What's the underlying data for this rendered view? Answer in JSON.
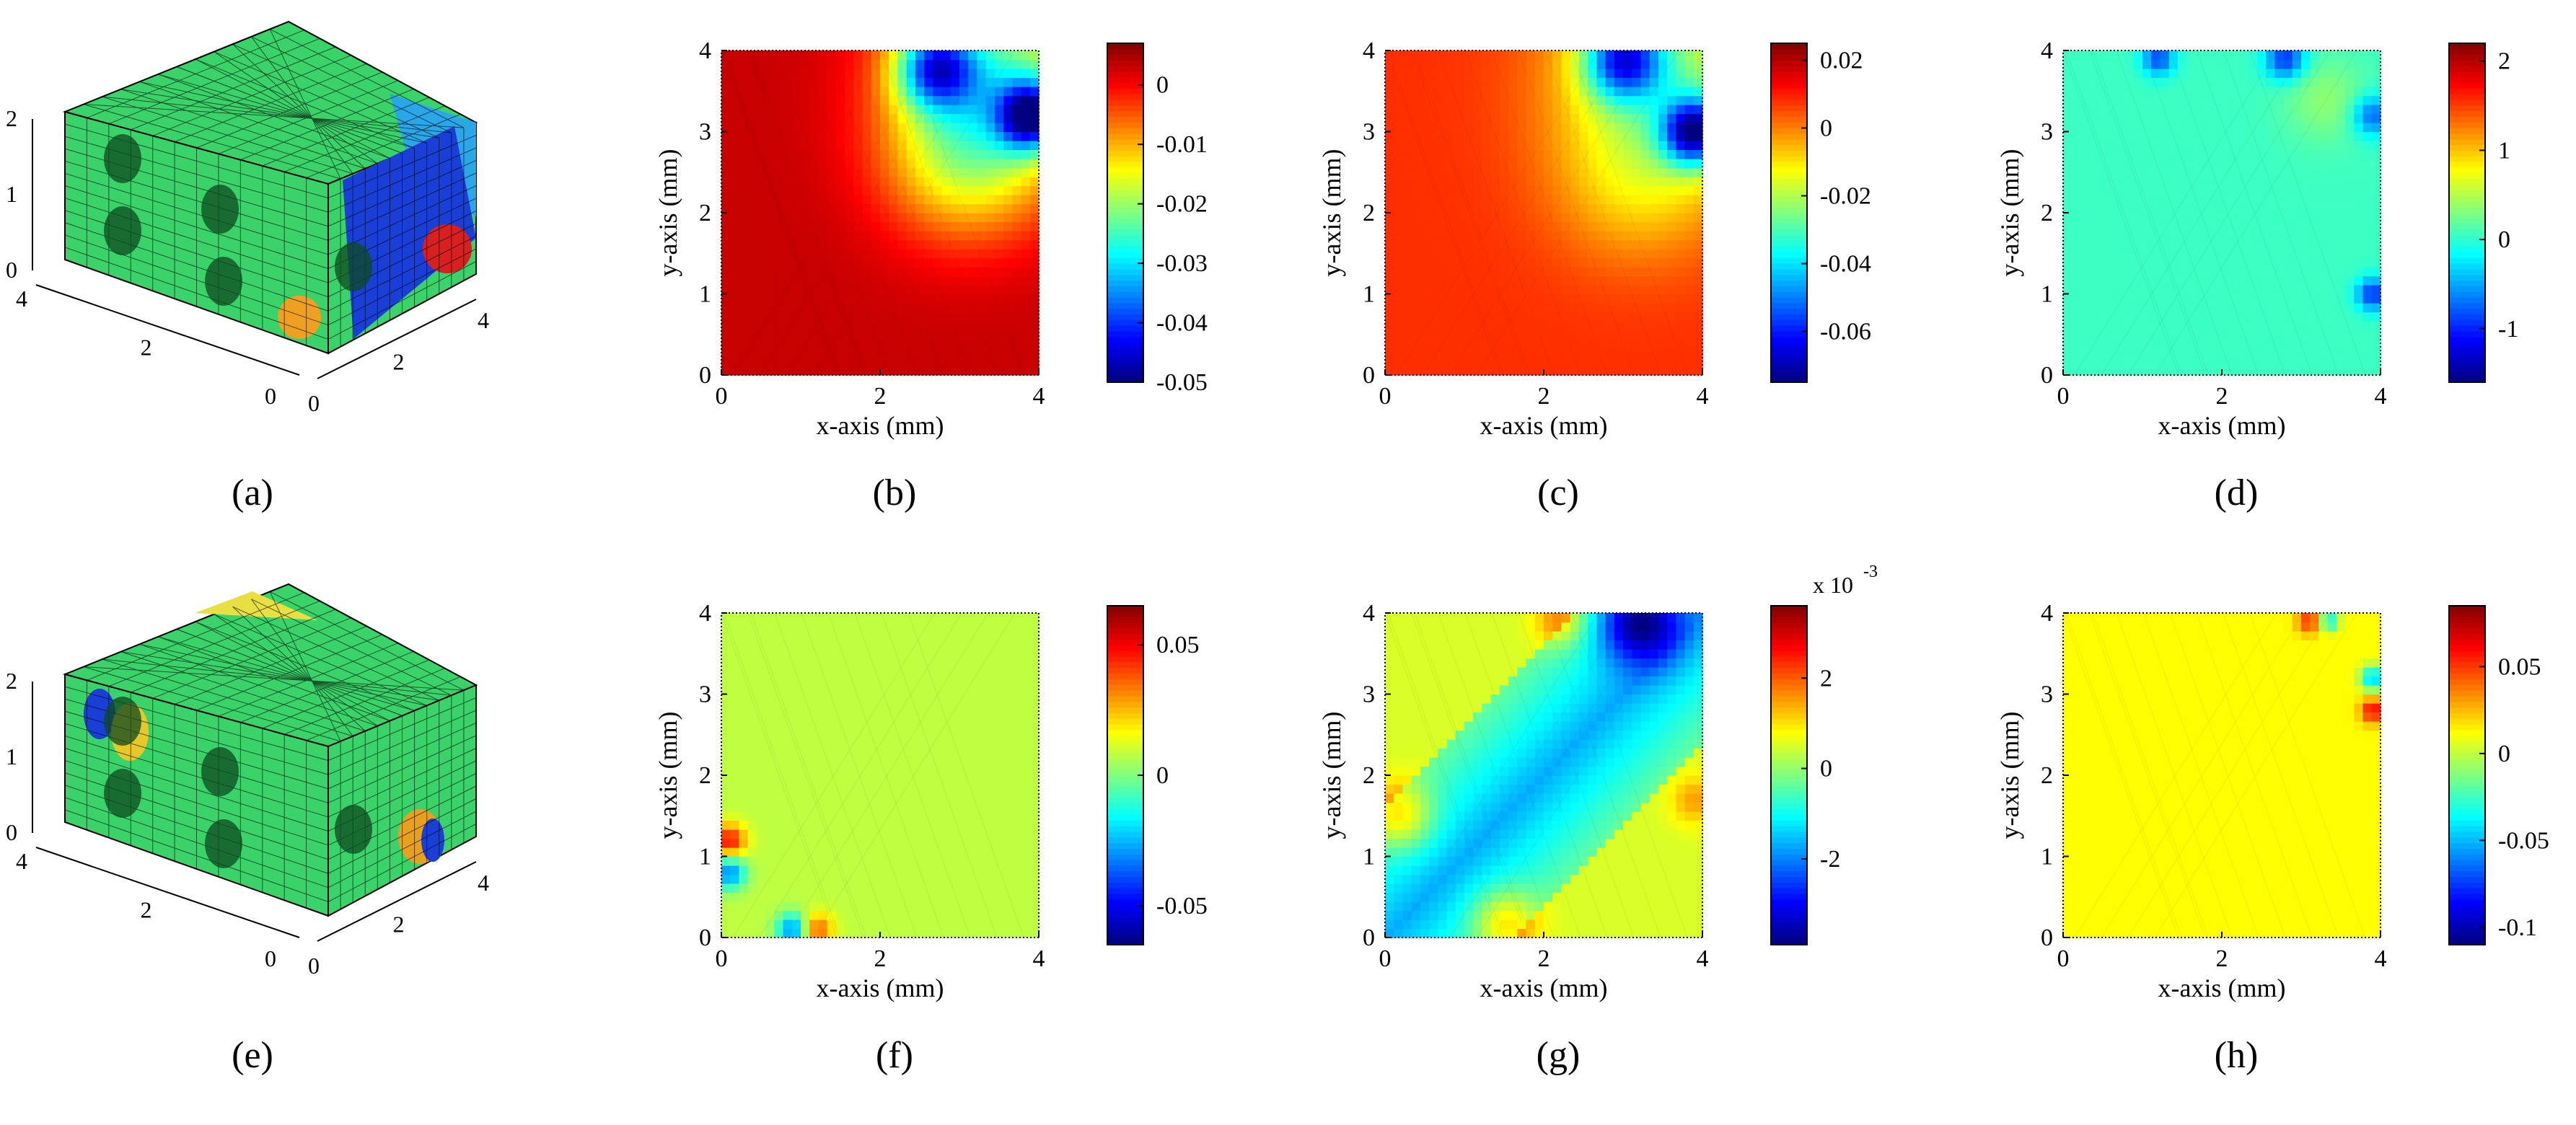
{
  "chart_data": [
    {
      "panel": "a",
      "type": "mesh3d",
      "caption": "(a)",
      "axes": {
        "z_ticks": [
          "0",
          "1",
          "2"
        ],
        "y_ticks": [
          "0",
          "2",
          "4"
        ],
        "x_ticks": [
          "0",
          "2",
          "4"
        ]
      },
      "colors": {
        "base": "#39d36a",
        "mesh": "#000000"
      }
    },
    {
      "panel": "b",
      "type": "heatmap",
      "caption": "(b)",
      "xlabel": "x-axis (mm)",
      "ylabel": "y-axis (mm)",
      "xlim": [
        0,
        4
      ],
      "ylim": [
        0,
        4
      ],
      "x_ticks": [
        "0",
        "2",
        "4"
      ],
      "y_ticks": [
        "0",
        "1",
        "2",
        "3",
        "4"
      ],
      "colorbar": {
        "min": -0.05,
        "max": 0.007,
        "ticks": [
          0,
          -0.01,
          -0.02,
          -0.03,
          -0.04,
          -0.05
        ],
        "tick_labels": [
          "0",
          "-0.01",
          "-0.02",
          "-0.03",
          "-0.04",
          "-0.05"
        ],
        "exponent": ""
      },
      "field": {
        "base": 0.003,
        "spots": [
          {
            "x": 3.5,
            "y": 3.6,
            "r": 1.3,
            "v": -0.025
          },
          {
            "x": 2.7,
            "y": 3.8,
            "r": 0.5,
            "v": -0.03
          },
          {
            "x": 3.9,
            "y": 3.2,
            "r": 0.4,
            "v": -0.035
          },
          {
            "x": 3.0,
            "y": 2.6,
            "r": 1.0,
            "v": -0.012
          }
        ]
      }
    },
    {
      "panel": "c",
      "type": "heatmap",
      "caption": "(c)",
      "xlabel": "x-axis (mm)",
      "ylabel": "y-axis (mm)",
      "xlim": [
        0,
        4
      ],
      "ylim": [
        0,
        4
      ],
      "x_ticks": [
        "0",
        "2",
        "4"
      ],
      "y_ticks": [
        "0",
        "1",
        "2",
        "3",
        "4"
      ],
      "colorbar": {
        "min": -0.075,
        "max": 0.025,
        "ticks": [
          0.02,
          0,
          -0.02,
          -0.04,
          -0.06
        ],
        "tick_labels": [
          "0.02",
          "0",
          "-0.02",
          "-0.04",
          "-0.06"
        ],
        "exponent": ""
      },
      "field": {
        "base": 0.008,
        "spots": [
          {
            "x": 3.6,
            "y": 3.6,
            "r": 1.4,
            "v": -0.03
          },
          {
            "x": 3.0,
            "y": 3.9,
            "r": 0.5,
            "v": -0.05
          },
          {
            "x": 3.9,
            "y": 3.0,
            "r": 0.4,
            "v": -0.06
          },
          {
            "x": 3.1,
            "y": 2.3,
            "r": 1.0,
            "v": -0.01
          }
        ]
      }
    },
    {
      "panel": "d",
      "type": "heatmap",
      "caption": "(d)",
      "xlabel": "x-axis (mm)",
      "ylabel": "y-axis (mm)",
      "xlim": [
        0,
        4
      ],
      "ylim": [
        0,
        4
      ],
      "x_ticks": [
        "0",
        "2",
        "4"
      ],
      "y_ticks": [
        "0",
        "1",
        "2",
        "3",
        "4"
      ],
      "colorbar": {
        "min": -1.6,
        "max": 2.2,
        "ticks": [
          2,
          1,
          0,
          -1
        ],
        "tick_labels": [
          "2",
          "1",
          "0",
          "-1"
        ],
        "exponent": ""
      },
      "field": {
        "base": 0.05,
        "spots": [
          {
            "x": 1.2,
            "y": 3.9,
            "r": 0.2,
            "v": -0.9
          },
          {
            "x": 2.8,
            "y": 3.9,
            "r": 0.25,
            "v": -1.0
          },
          {
            "x": 3.9,
            "y": 3.2,
            "r": 0.25,
            "v": -0.8
          },
          {
            "x": 3.9,
            "y": 1.0,
            "r": 0.2,
            "v": -1.0
          },
          {
            "x": 3.3,
            "y": 3.4,
            "r": 0.5,
            "v": 0.3
          }
        ]
      }
    },
    {
      "panel": "e",
      "type": "mesh3d",
      "caption": "(e)",
      "axes": {
        "z_ticks": [
          "0",
          "1",
          "2"
        ],
        "y_ticks": [
          "0",
          "2",
          "4"
        ],
        "x_ticks": [
          "0",
          "2",
          "4"
        ]
      },
      "colors": {
        "base": "#39d36a",
        "mesh": "#000000"
      }
    },
    {
      "panel": "f",
      "type": "heatmap",
      "caption": "(f)",
      "xlabel": "x-axis (mm)",
      "ylabel": "y-axis (mm)",
      "xlim": [
        0,
        4
      ],
      "ylim": [
        0,
        4
      ],
      "x_ticks": [
        "0",
        "2",
        "4"
      ],
      "y_ticks": [
        "0",
        "1",
        "2",
        "3",
        "4"
      ],
      "colorbar": {
        "min": -0.065,
        "max": 0.065,
        "ticks": [
          0.05,
          0,
          -0.05
        ],
        "tick_labels": [
          "0.05",
          "0",
          "-0.05"
        ],
        "exponent": ""
      },
      "field": {
        "base": 0.008,
        "spots": [
          {
            "x": 0.1,
            "y": 1.2,
            "r": 0.2,
            "v": 0.04
          },
          {
            "x": 0.1,
            "y": 0.8,
            "r": 0.2,
            "v": -0.04
          },
          {
            "x": 0.9,
            "y": 0.1,
            "r": 0.2,
            "v": -0.04
          },
          {
            "x": 1.2,
            "y": 0.1,
            "r": 0.2,
            "v": 0.03
          }
        ]
      }
    },
    {
      "panel": "g",
      "type": "heatmap",
      "caption": "(g)",
      "xlabel": "x-axis (mm)",
      "ylabel": "y-axis (mm)",
      "xlim": [
        0,
        4
      ],
      "ylim": [
        0,
        4
      ],
      "x_ticks": [
        "0",
        "2",
        "4"
      ],
      "y_ticks": [
        "0",
        "1",
        "2",
        "3",
        "4"
      ],
      "colorbar": {
        "min": -3.9,
        "max": 3.6,
        "ticks": [
          2,
          0,
          -2
        ],
        "tick_labels": [
          "2",
          "0",
          "-2"
        ],
        "exponent": "x 10",
        "exponent_power": "-3"
      },
      "field": {
        "base": 0.5,
        "band": {
          "v": -2.2,
          "width": 1.1
        },
        "spots": [
          {
            "x": 3.2,
            "y": 3.9,
            "r": 0.5,
            "v": -2.8
          },
          {
            "x": 0.2,
            "y": 1.5,
            "r": 0.4,
            "v": 1.5
          },
          {
            "x": 1.5,
            "y": 0.2,
            "r": 0.4,
            "v": 1.5
          },
          {
            "x": 2.2,
            "y": 3.9,
            "r": 0.3,
            "v": 1.2
          },
          {
            "x": 3.9,
            "y": 1.7,
            "r": 0.3,
            "v": 1.0
          }
        ]
      }
    },
    {
      "panel": "h",
      "type": "heatmap",
      "caption": "(h)",
      "xlabel": "x-axis (mm)",
      "ylabel": "y-axis (mm)",
      "xlim": [
        0,
        4
      ],
      "ylim": [
        0,
        4
      ],
      "x_ticks": [
        "0",
        "2",
        "4"
      ],
      "y_ticks": [
        "0",
        "1",
        "2",
        "3",
        "4"
      ],
      "colorbar": {
        "min": -0.11,
        "max": 0.085,
        "ticks": [
          0.05,
          0,
          -0.05,
          -0.1
        ],
        "tick_labels": [
          "0.05",
          "0",
          "-0.05",
          "-0.1"
        ],
        "exponent": ""
      },
      "field": {
        "base": 0.012,
        "spots": [
          {
            "x": 3.1,
            "y": 3.9,
            "r": 0.15,
            "v": 0.04
          },
          {
            "x": 3.35,
            "y": 3.9,
            "r": 0.12,
            "v": -0.05
          },
          {
            "x": 3.9,
            "y": 3.2,
            "r": 0.15,
            "v": -0.06
          },
          {
            "x": 3.9,
            "y": 2.8,
            "r": 0.15,
            "v": 0.05
          }
        ]
      }
    }
  ]
}
